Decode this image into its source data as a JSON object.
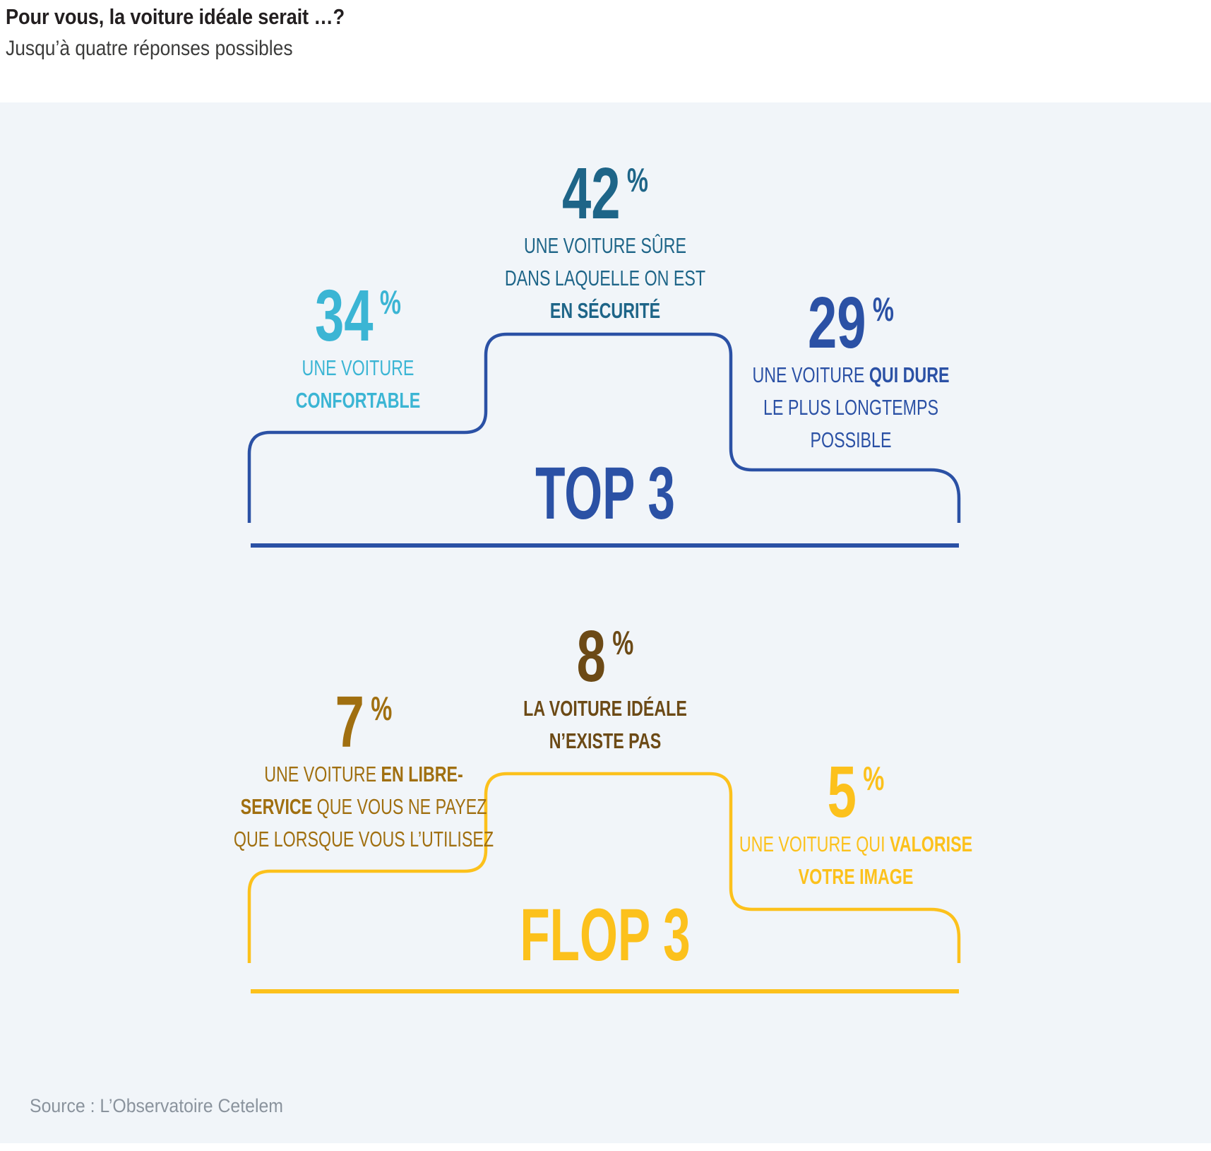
{
  "header": {
    "title": "Pour vous, la voiture idéale serait …?",
    "subtitle": "Jusqu’à quatre réponses possibles"
  },
  "palette": {
    "background_panel": "#F1F5F9",
    "top_outline": "#2B51A5",
    "top_value_center": "#1E6588",
    "top_value_left": "#3BB5D4",
    "top_value_right": "#2B51A5",
    "flop_outline": "#FCC11C",
    "flop_value_center": "#6C4A16",
    "flop_value_left": "#A06F10",
    "flop_value_right": "#FCC11C"
  },
  "top3": {
    "label": "TOP 3",
    "items": [
      {
        "id": "confortable",
        "value": "34",
        "unit": "%",
        "lines": [
          [
            {
              "t": "UNE VOITURE"
            }
          ],
          [
            {
              "t": "CONFORTABLE",
              "b": true
            }
          ]
        ]
      },
      {
        "id": "sure",
        "value": "42",
        "unit": "%",
        "lines": [
          [
            {
              "t": "UNE VOITURE SÛRE"
            }
          ],
          [
            {
              "t": "DANS LAQUELLE ON EST"
            }
          ],
          [
            {
              "t": "EN SÉCURITÉ",
              "b": true
            }
          ]
        ]
      },
      {
        "id": "qui-dure",
        "value": "29",
        "unit": "%",
        "lines": [
          [
            {
              "t": "UNE VOITURE "
            },
            {
              "t": "QUI DURE",
              "b": true
            }
          ],
          [
            {
              "t": "LE PLUS LONGTEMPS"
            }
          ],
          [
            {
              "t": "POSSIBLE"
            }
          ]
        ]
      }
    ]
  },
  "flop3": {
    "label": "FLOP 3",
    "items": [
      {
        "id": "libre-service",
        "value": "7",
        "unit": "%",
        "lines": [
          [
            {
              "t": "UNE VOITURE "
            },
            {
              "t": "EN LIBRE-",
              "b": true
            }
          ],
          [
            {
              "t": "SERVICE",
              "b": true
            },
            {
              "t": " QUE VOUS NE PAYEZ"
            }
          ],
          [
            {
              "t": "QUE LORSQUE VOUS L’UTILISEZ"
            }
          ]
        ]
      },
      {
        "id": "n-existe-pas",
        "value": "8",
        "unit": "%",
        "lines": [
          [
            {
              "t": "LA VOITURE IDÉALE",
              "b": true
            }
          ],
          [
            {
              "t": "N’EXISTE PAS",
              "b": true
            }
          ]
        ]
      },
      {
        "id": "valorise-image",
        "value": "5",
        "unit": "%",
        "lines": [
          [
            {
              "t": "UNE VOITURE QUI "
            },
            {
              "t": "VALORISE",
              "b": true
            }
          ],
          [
            {
              "t": "VOTRE IMAGE",
              "b": true
            }
          ]
        ]
      }
    ]
  },
  "source": "Source : L’Observatoire Cetelem",
  "chart_data": {
    "type": "bar",
    "title": "Pour vous, la voiture idéale serait …?",
    "subtitle": "Jusqu’à quatre réponses possibles",
    "unit": "%",
    "groups": [
      {
        "name": "TOP 3",
        "color": "#2B51A5",
        "categories": [
          "Une voiture confortable",
          "Une voiture sûre dans laquelle on est en sécurité",
          "Une voiture qui dure le plus longtemps possible"
        ],
        "values": [
          34,
          42,
          29
        ]
      },
      {
        "name": "FLOP 3",
        "color": "#FCC11C",
        "categories": [
          "Une voiture en libre-service que vous ne payez que lorsque vous l’utilisez",
          "La voiture idéale n’existe pas",
          "Une voiture qui valorise votre image"
        ],
        "values": [
          7,
          8,
          5
        ]
      }
    ],
    "layout": "podium (center = rank 1, left = rank 2, right = rank 3)",
    "source": "Source : L’Observatoire Cetelem"
  }
}
